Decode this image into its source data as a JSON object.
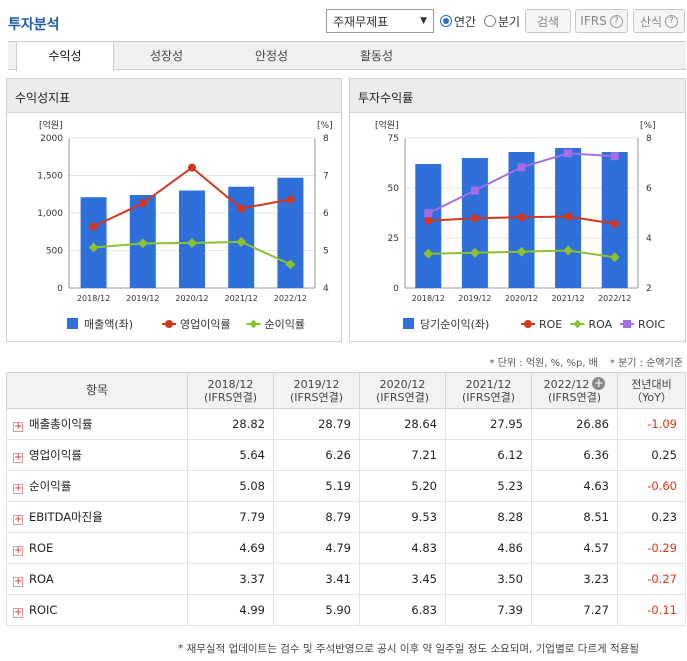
{
  "page_title": "투자분석",
  "controls": {
    "select_value": "주재무제표",
    "radio_annual": "연간",
    "radio_quarter": "분기",
    "search_btn": "검색",
    "ifrs_btn": "IFRS",
    "formula_btn": "산식"
  },
  "tabs": [
    "수익성",
    "성장성",
    "안정성",
    "활동성"
  ],
  "panels": {
    "left_title": "수익성지표",
    "right_title": "투자수익률"
  },
  "chart_data": [
    {
      "type": "bar",
      "categories": [
        "2018/12",
        "2019/12",
        "2020/12",
        "2021/12",
        "2022/12"
      ],
      "y_left_unit": "[억원]",
      "y_right_unit": "[%]",
      "y_left_ticks": [
        "0",
        "500",
        "1,000",
        "1,500",
        "2000"
      ],
      "y_right_ticks": [
        "4",
        "5",
        "6",
        "7",
        "8"
      ],
      "ylim_left": [
        0,
        2000
      ],
      "ylim_right": [
        4,
        8
      ],
      "bars": {
        "name": "매출액(좌)",
        "color": "#2f6fd9",
        "values": [
          1210,
          1240,
          1300,
          1350,
          1470
        ]
      },
      "lines": [
        {
          "name": "영업이익률",
          "color": "#d0391f",
          "values": [
            5.64,
            6.26,
            7.21,
            6.12,
            6.36
          ]
        },
        {
          "name": "순이익률",
          "color": "#8cc030",
          "values": [
            5.08,
            5.19,
            5.2,
            5.23,
            4.63
          ]
        }
      ]
    },
    {
      "type": "bar",
      "categories": [
        "2018/12",
        "2019/12",
        "2020/12",
        "2021/12",
        "2022/12"
      ],
      "y_left_unit": "[억원]",
      "y_right_unit": "[%]",
      "y_left_ticks": [
        "0",
        "25",
        "50",
        "75"
      ],
      "y_right_ticks": [
        "2",
        "4",
        "6",
        "8"
      ],
      "ylim_left": [
        0,
        75
      ],
      "ylim_right": [
        2,
        8
      ],
      "bars": {
        "name": "당기순이익(좌)",
        "color": "#2f6fd9",
        "values": [
          62,
          65,
          68,
          70,
          68
        ]
      },
      "lines": [
        {
          "name": "ROE",
          "color": "#d0391f",
          "values": [
            4.69,
            4.79,
            4.83,
            4.86,
            4.57
          ]
        },
        {
          "name": "ROA",
          "color": "#8cc030",
          "values": [
            3.37,
            3.41,
            3.45,
            3.5,
            3.23
          ]
        },
        {
          "name": "ROIC",
          "color": "#a56ee6",
          "values": [
            4.99,
            5.9,
            6.83,
            7.39,
            7.27
          ]
        }
      ]
    }
  ],
  "notes": {
    "unit": "* 단위 : 억원, %, %p, 배",
    "period": "* 분기 : 순액기준"
  },
  "table": {
    "header_item": "항목",
    "columns": [
      {
        "year": "2018/12",
        "basis": "(IFRS연결)"
      },
      {
        "year": "2019/12",
        "basis": "(IFRS연결)"
      },
      {
        "year": "2020/12",
        "basis": "(IFRS연결)"
      },
      {
        "year": "2021/12",
        "basis": "(IFRS연결)"
      },
      {
        "year": "2022/12",
        "basis": "(IFRS연결)"
      }
    ],
    "yoy_header": "전년대비",
    "yoy_sub": "（YoY）",
    "rows": [
      {
        "label": "매출총이익률",
        "values": [
          "28.82",
          "28.79",
          "28.64",
          "27.95",
          "26.86"
        ],
        "yoy": "-1.09"
      },
      {
        "label": "영업이익률",
        "values": [
          "5.64",
          "6.26",
          "7.21",
          "6.12",
          "6.36"
        ],
        "yoy": "0.25"
      },
      {
        "label": "순이익률",
        "values": [
          "5.08",
          "5.19",
          "5.20",
          "5.23",
          "4.63"
        ],
        "yoy": "-0.60"
      },
      {
        "label": "EBITDA마진율",
        "values": [
          "7.79",
          "8.79",
          "9.53",
          "8.28",
          "8.51"
        ],
        "yoy": "0.23"
      },
      {
        "label": "ROE",
        "values": [
          "4.69",
          "4.79",
          "4.83",
          "4.86",
          "4.57"
        ],
        "yoy": "-0.29"
      },
      {
        "label": "ROA",
        "values": [
          "3.37",
          "3.41",
          "3.45",
          "3.50",
          "3.23"
        ],
        "yoy": "-0.27"
      },
      {
        "label": "ROIC",
        "values": [
          "4.99",
          "5.90",
          "6.83",
          "7.39",
          "7.27"
        ],
        "yoy": "-0.11"
      }
    ]
  },
  "footer": "* 재무실적 업데이트는 검수 및 주석반영으로 공시 이후 약 일주일 정도 소요되며, 기업별로 다르게 적용될"
}
